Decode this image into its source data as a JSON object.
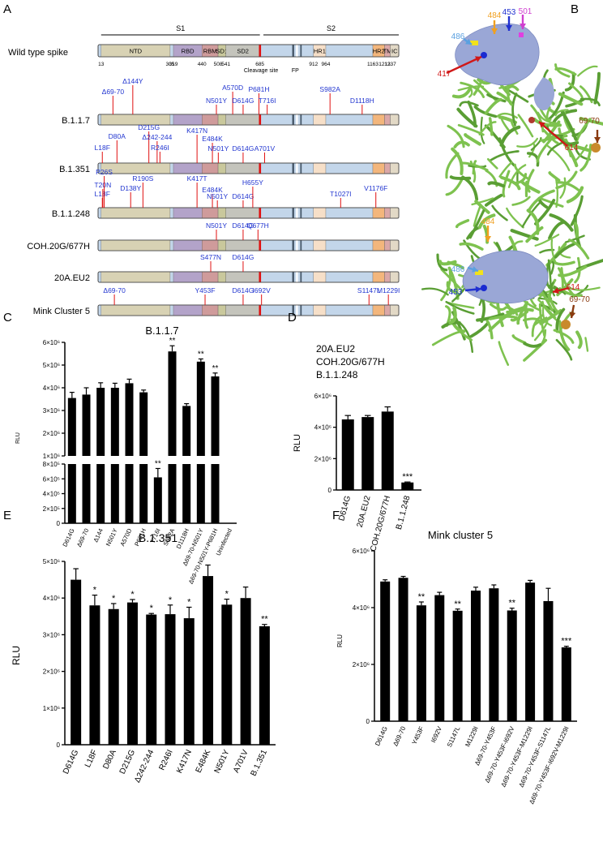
{
  "panel_letters": [
    "A",
    "B",
    "C",
    "D",
    "E",
    "F"
  ],
  "colors": {
    "NTD": "#d8d2b4",
    "RBD": "#b3a3c9",
    "RBM": "#cf9b9b",
    "SD1": "#c9c89c",
    "SD2": "#c4c4bc",
    "FP": "#ffffff",
    "HR1": "#f6dfc8",
    "HR2": "#f3b67c",
    "TM": "#dba8a8",
    "IC": "#e2d9c6",
    "blue": "#c3d6ea",
    "cleavage": "#e01010",
    "mutation_text": "#2236d0",
    "mutation_tick": "#e01010",
    "helix": "#7ec24f",
    "surface": "#9aa7d6",
    "bar": "#000000"
  },
  "spike": {
    "S1_label": "S1",
    "S2_label": "S2",
    "wildtype_label": "Wild type spike",
    "domains": [
      {
        "name": "NTD",
        "start": 13,
        "end": 305,
        "color": "#d8d2b4"
      },
      {
        "name": "RBD",
        "start": 319,
        "end": 440,
        "color": "#b3a3c9"
      },
      {
        "name": "RBM",
        "start": 440,
        "end": 508,
        "color": "#cf9b9b"
      },
      {
        "name": "SD1",
        "start": 508,
        "end": 541,
        "color": "#c9c89c"
      },
      {
        "name": "SD2",
        "start": 541,
        "end": 685,
        "color": "#c4c4bc"
      },
      {
        "name": "HR1",
        "start": 912,
        "end": 964,
        "color": "#f6dfc8"
      },
      {
        "name": "HR2",
        "start": 1163,
        "end": 1213,
        "color": "#f3b67c"
      },
      {
        "name": "TM",
        "start": 1213,
        "end": 1237,
        "color": "#dba8a8"
      },
      {
        "name": "IC",
        "start": 1237,
        "end": 1273,
        "color": "#e2d9c6"
      }
    ],
    "tick_numbers": [
      "13",
      "305",
      "319",
      "440",
      "508",
      "541",
      "685",
      "912",
      "964",
      "1163",
      "1213",
      "1237"
    ],
    "cleavage_label": "Cleavage site",
    "fp_label": "FP"
  },
  "variants": [
    {
      "name": "B.1.1.7",
      "mutations": [
        "Δ69-70",
        "Δ144Y",
        "N501Y",
        "A570D",
        "D614G",
        "P681H",
        "T716I",
        "S982A",
        "D1118H"
      ]
    },
    {
      "name": "B.1.351",
      "mutations": [
        "L18F",
        "D80A",
        "D215G",
        "Δ242-244",
        "R246I",
        "K417N",
        "E484K",
        "N501Y",
        "D614G",
        "A701V"
      ]
    },
    {
      "name": "B.1.1.248",
      "mutations": [
        "L18F",
        "T20N",
        "P26S",
        "D138Y",
        "R190S",
        "K417T",
        "E484K",
        "N501Y",
        "D614G",
        "H655Y",
        "T1027I",
        "V1176F"
      ]
    },
    {
      "name": "COH.20G/677H",
      "mutations": [
        "N501Y",
        "D614G",
        "Q677H"
      ]
    },
    {
      "name": "20A.EU2",
      "mutations": [
        "S477N",
        "D614G"
      ]
    },
    {
      "name": "Mink Cluster 5",
      "mutations": [
        "Δ69-70",
        "Y453F",
        "D614G",
        "I692V",
        "S1147L",
        "M1229I"
      ]
    }
  ],
  "structure_labels": {
    "top": [
      "486",
      "484",
      "453",
      "501",
      "417",
      "614",
      "69-70"
    ],
    "bottom": [
      "484",
      "486",
      "453",
      "614",
      "69-70"
    ]
  },
  "chart_data": [
    {
      "panel": "C",
      "type": "bar",
      "title": "B.1.1.7",
      "ylabel": "RLU",
      "categories": [
        "D614G",
        "Δ69-70",
        "Δ144",
        "N501Y",
        "A570D",
        "P681H",
        "T716I",
        "S982A",
        "D1118H",
        "Δ69-70-N501Y",
        "Δ69-70-N501Y-P681H",
        "Uninfected"
      ],
      "values": [
        3550000,
        3700000,
        4000000,
        4000000,
        4200000,
        3800000,
        620000,
        5600000,
        3200000,
        5150000,
        4500000,
        0
      ],
      "errors": [
        250000,
        300000,
        220000,
        200000,
        180000,
        100000,
        120000,
        250000,
        100000,
        120000,
        150000,
        0
      ],
      "significance": [
        "",
        "",
        "",
        "",
        "",
        "",
        "**",
        "**",
        "",
        "**",
        "**",
        ""
      ],
      "broken_axis": true,
      "lower_ylim": [
        0,
        800000
      ],
      "lower_ticks": [
        "0",
        "2×10⁵",
        "4×10⁵",
        "6×10⁵",
        "8×10⁵"
      ],
      "upper_ylim": [
        1000000,
        6000000
      ],
      "upper_ticks": [
        "1×10⁶",
        "2×10⁶",
        "3×10⁶",
        "4×10⁶",
        "5×10⁶",
        "6×10⁶"
      ]
    },
    {
      "panel": "D",
      "type": "bar",
      "title_lines": [
        "20A.EU2",
        "COH.20G/677H",
        "B.1.1.248"
      ],
      "ylabel": "RLU",
      "categories": [
        "D614G",
        "20A.EU2",
        "COH.20G/677H",
        "B.1.1.248"
      ],
      "values": [
        4500000,
        4650000,
        5000000,
        480000
      ],
      "errors": [
        250000,
        100000,
        300000,
        30000
      ],
      "significance": [
        "",
        "",
        "",
        "***"
      ],
      "ylim": [
        0,
        6000000
      ],
      "ticks": [
        "0",
        "2×10⁶",
        "4×10⁶",
        "6×10⁶"
      ]
    },
    {
      "panel": "E",
      "type": "bar",
      "title": "B.1.351",
      "ylabel": "RLU",
      "categories": [
        "D614G",
        "L18F",
        "D80A",
        "D215G",
        "Δ242-244",
        "R246I",
        "K417N",
        "E484K",
        "N501Y",
        "A701V",
        "B.1.351"
      ],
      "values": [
        4500000,
        3800000,
        3700000,
        3880000,
        3550000,
        3560000,
        3450000,
        4600000,
        3820000,
        4000000,
        3230000
      ],
      "errors": [
        300000,
        280000,
        150000,
        80000,
        30000,
        250000,
        300000,
        300000,
        150000,
        300000,
        50000
      ],
      "significance": [
        "",
        "*",
        "*",
        "*",
        "*",
        "*",
        "*",
        "",
        "*",
        "",
        "**"
      ],
      "ylim": [
        0,
        5000000
      ],
      "ticks": [
        "0",
        "1×10⁶",
        "2×10⁶",
        "3×10⁶",
        "4×10⁶",
        "5×10⁶"
      ]
    },
    {
      "panel": "F",
      "type": "bar",
      "title": "Mink cluster 5",
      "ylabel": "RLU",
      "categories": [
        "D614G",
        "Δ69-70",
        "Y453F",
        "I692V",
        "S1147L",
        "M1229I",
        "Δ69-70-Y453F",
        "Δ69-70-Y453F-I692V",
        "Δ69-70-Y453F-M1229I",
        "Δ69-70-Y453F-S1147L",
        "Δ69-70-Y453F-I692V-M1229I"
      ],
      "values": [
        4920000,
        5050000,
        4080000,
        4440000,
        3890000,
        4600000,
        4680000,
        3900000,
        4880000,
        4230000,
        2600000
      ],
      "errors": [
        60000,
        50000,
        120000,
        100000,
        60000,
        120000,
        120000,
        80000,
        80000,
        450000,
        40000
      ],
      "significance": [
        "",
        "",
        "**",
        "",
        "**",
        "",
        "",
        "**",
        "",
        "",
        "***"
      ],
      "ylim": [
        0,
        6000000
      ],
      "ticks": [
        "0",
        "2×10⁶",
        "4×10⁶",
        "6×10⁶"
      ]
    }
  ]
}
